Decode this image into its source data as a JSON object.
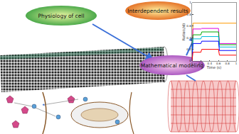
{
  "diagram": {
    "nodes": [
      {
        "label": "Physiology of cell"
      },
      {
        "label": "Interdependent results"
      },
      {
        "label": "Mathematical modeling"
      }
    ]
  },
  "chart_data": {
    "type": "line",
    "x_label": "Time (s)",
    "y_label": "Ratio(c/d)",
    "x": [
      0,
      0.02,
      0.2,
      0.22,
      0.6,
      0.62,
      1
    ],
    "series": [
      {
        "color": "#ff9900",
        "values": [
          0,
          0.65,
          0.65,
          0.65,
          0.65,
          0.65,
          0.65
        ]
      },
      {
        "color": "#dd00dd",
        "values": [
          0,
          0.55,
          0.55,
          0.56,
          0.56,
          0.3,
          0.3
        ]
      },
      {
        "color": "#00aa00",
        "values": [
          0,
          0.45,
          0.45,
          0.5,
          0.5,
          0.28,
          0.28
        ]
      },
      {
        "color": "#00bbdd",
        "values": [
          0,
          0.38,
          0.38,
          0.42,
          0.42,
          0.24,
          0.24
        ]
      },
      {
        "color": "#0000ff",
        "values": [
          0,
          0.3,
          0.3,
          0.34,
          0.34,
          0.18,
          0.18
        ]
      },
      {
        "color": "#ff0000",
        "values": [
          0,
          0.15,
          0.15,
          0.2,
          0.2,
          0.1,
          0.1
        ]
      }
    ],
    "xlim": [
      0,
      1
    ],
    "xticks": [
      0,
      0.2,
      0.4,
      0.6,
      0.8,
      1
    ],
    "ylim": [
      0,
      1
    ],
    "yticks": [
      0,
      0.2,
      0.4,
      0.6,
      0.8,
      1
    ],
    "grid": false
  }
}
